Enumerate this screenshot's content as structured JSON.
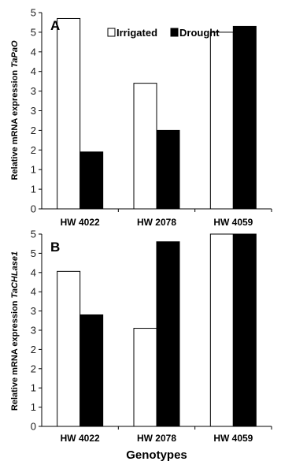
{
  "chart_data": [
    {
      "type": "bar",
      "panel": "A",
      "categories": [
        "HW 4022",
        "HW 2078",
        "HW 4059"
      ],
      "series": [
        {
          "name": "Irrigated",
          "values": [
            4.85,
            3.2,
            4.5
          ],
          "color": "#ffffff"
        },
        {
          "name": "Drought",
          "values": [
            1.45,
            2.0,
            4.65
          ],
          "color": "#000000"
        }
      ],
      "ylabel_prefix": "Relative mRNA expression ",
      "ylabel_gene": "TaPaO",
      "xlabel": "",
      "ylim": [
        0,
        5
      ],
      "yticks": [
        0,
        0.5,
        1,
        1.5,
        2,
        2.5,
        3,
        3.5,
        4,
        4.5,
        5
      ],
      "ytick_labels": [
        "0",
        "1",
        "1",
        "2",
        "2",
        "3",
        "3",
        "4",
        "4",
        "5",
        "5"
      ],
      "legend": [
        "Irrigated",
        "Drought"
      ],
      "legend_position": "top"
    },
    {
      "type": "bar",
      "panel": "B",
      "categories": [
        "HW 4022",
        "HW 2078",
        "HW 4059"
      ],
      "series": [
        {
          "name": "Irrigated",
          "values": [
            4.03,
            2.55,
            5.0
          ]
        },
        {
          "name": "Drought",
          "values": [
            2.9,
            4.8,
            5.0
          ]
        }
      ],
      "ylabel_prefix": "Relative mRNA expression ",
      "ylabel_gene": "TaCHLase1",
      "xlabel": "Genotypes",
      "ylim": [
        0,
        5
      ],
      "yticks": [
        0,
        0.5,
        1,
        1.5,
        2,
        2.5,
        3,
        3.5,
        4,
        4.5,
        5
      ],
      "ytick_labels": [
        "0",
        "1",
        "1",
        "2",
        "2",
        "3",
        "3",
        "4",
        "4",
        "5",
        "5"
      ]
    }
  ]
}
